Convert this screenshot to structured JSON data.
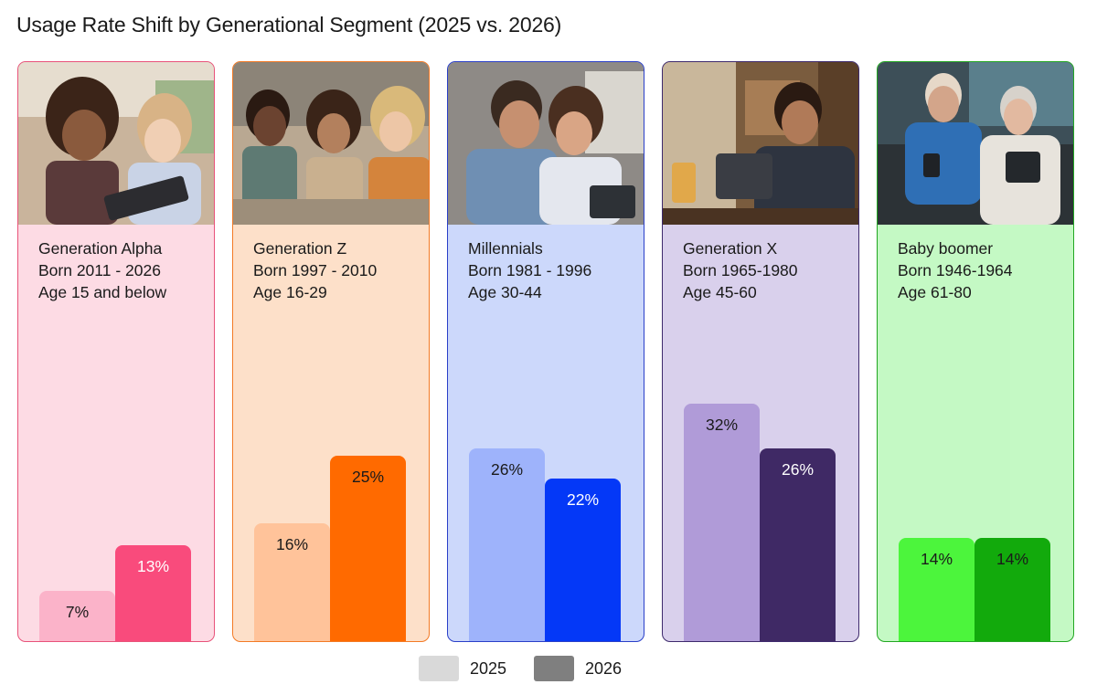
{
  "title": "Usage Rate Shift by Generational Segment (2025 vs. 2026)",
  "legend": [
    {
      "label": "2025",
      "color": "#d9d9d9"
    },
    {
      "label": "2026",
      "color": "#7f7f7f"
    }
  ],
  "chart_data": {
    "type": "bar",
    "title": "Usage Rate Shift by Generational Segment (2025 vs. 2026)",
    "categories": [
      "Generation Alpha",
      "Generation Z",
      "Millennials",
      "Generation X",
      "Baby boomer"
    ],
    "series": [
      {
        "name": "2025",
        "values": [
          7,
          16,
          26,
          32,
          14
        ]
      },
      {
        "name": "2026",
        "values": [
          13,
          25,
          22,
          26,
          14
        ]
      }
    ],
    "ylim": [
      0,
      42
    ],
    "grid": false,
    "legend_position": "bottom-center"
  },
  "segments": [
    {
      "name": "Generation Alpha",
      "born": "Born 2011 - 2026",
      "age": "Age 15 and below",
      "labels": [
        "7%",
        "13%"
      ],
      "border": "#e8537a",
      "bg": "#fddbe4",
      "color_2025": "#fbb3c9",
      "color_2026": "#f94b7c",
      "label_2026_color": "#ffffff",
      "photo_icon": "children-with-tablet-photo"
    },
    {
      "name": "Generation Z",
      "born": "Born 1997 - 2010",
      "age": "Age 16-29",
      "labels": [
        "16%",
        "25%"
      ],
      "border": "#f37a25",
      "bg": "#fde0c9",
      "color_2025": "#ffc39a",
      "color_2026": "#ff6a00",
      "label_2026_color": "#1a1a1a",
      "photo_icon": "young-adults-with-phones-photo"
    },
    {
      "name": "Millennials",
      "born": "Born 1981 - 1996",
      "age": "Age 30-44",
      "labels": [
        "26%",
        "22%"
      ],
      "border": "#2a3fc8",
      "bg": "#ccd8fb",
      "color_2025": "#9eb3fb",
      "color_2026": "#0438f7",
      "label_2026_color": "#ffffff",
      "photo_icon": "couple-with-devices-photo"
    },
    {
      "name": "Generation X",
      "born": "Born 1965-1980",
      "age": "Age 45-60",
      "labels": [
        "32%",
        "26%"
      ],
      "border": "#3e2a6d",
      "bg": "#d9d0ec",
      "color_2025": "#b09bd8",
      "color_2026": "#3f2965",
      "label_2026_color": "#ffffff",
      "photo_icon": "man-with-tablet-photo"
    },
    {
      "name": "Baby boomer",
      "born": "Born 1946-1964",
      "age": "Age 61-80",
      "labels": [
        "14%",
        "14%"
      ],
      "border": "#22a722",
      "bg": "#c4f9c4",
      "color_2025": "#4cf53c",
      "color_2026": "#12aa0c",
      "label_2026_color": "#1a1a1a",
      "photo_icon": "seniors-with-devices-photo"
    }
  ]
}
